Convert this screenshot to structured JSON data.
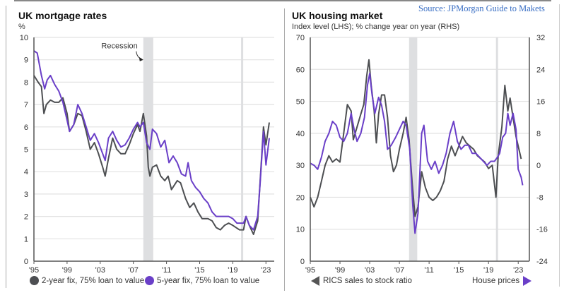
{
  "source_note": "Source: JPMorgan Guide to Makets",
  "colors": {
    "gray_series": "#4d4f52",
    "purple_series": "#6a3fc8",
    "recession": "#dedfe1",
    "grid": "#e2e2e2",
    "source_text": "#3a6fc4"
  },
  "chart_data": [
    {
      "type": "line",
      "title": "UK mortgage rates",
      "ylabel": "%",
      "xlabel": "",
      "ylim": [
        0,
        10
      ],
      "xlim": [
        1995,
        2024
      ],
      "yticks": [
        0,
        1,
        2,
        3,
        4,
        5,
        6,
        7,
        8,
        9,
        10
      ],
      "xticks": [
        {
          "x": 1995,
          "label": "'95"
        },
        {
          "x": 1999,
          "label": "'99"
        },
        {
          "x": 2003,
          "label": "'03"
        },
        {
          "x": 2007,
          "label": "'07"
        },
        {
          "x": 2011,
          "label": "'11"
        },
        {
          "x": 2015,
          "label": "'15"
        },
        {
          "x": 2019,
          "label": "'19"
        },
        {
          "x": 2023,
          "label": "'23"
        }
      ],
      "grid": true,
      "legend": "bottom",
      "annotations": [
        {
          "text": "Recession",
          "target_x": 2008.2,
          "target_y": 9.0
        }
      ],
      "shaded_periods": [
        [
          2008.2,
          2009.4
        ],
        [
          2020.0,
          2020.25
        ]
      ],
      "series": [
        {
          "name": "2-year fix, 75% loan to value",
          "color": "#4d4f52",
          "x": [
            1995,
            1995.5,
            1995.9,
            1996.2,
            1996.5,
            1997,
            1997.5,
            1998,
            1998.5,
            1999,
            1999.3,
            1999.8,
            2000.3,
            2000.8,
            2001.3,
            2001.8,
            2002.3,
            2002.8,
            2003.3,
            2003.6,
            2004,
            2004.5,
            2005,
            2005.5,
            2006,
            2006.5,
            2007,
            2007.5,
            2007.8,
            2008.2,
            2008.6,
            2008.8,
            2009,
            2009.3,
            2009.8,
            2010.3,
            2010.8,
            2011.2,
            2011.6,
            2012.3,
            2012.7,
            2013.3,
            2013.8,
            2014.3,
            2014.8,
            2015.3,
            2016,
            2016.5,
            2017,
            2017.5,
            2018,
            2018.5,
            2019,
            2019.8,
            2020.3,
            2020.6,
            2021,
            2021.5,
            2022,
            2022.7,
            2023,
            2023.4
          ],
          "values": [
            8.3,
            8.0,
            7.8,
            6.6,
            7.0,
            7.2,
            7.1,
            7.1,
            7.3,
            6.6,
            5.8,
            6.1,
            6.6,
            6.5,
            5.8,
            5.0,
            5.3,
            4.8,
            4.2,
            3.8,
            4.6,
            5.5,
            5.0,
            4.8,
            4.8,
            5.2,
            5.7,
            6.1,
            5.8,
            6.6,
            5.6,
            4.2,
            3.8,
            4.2,
            4.3,
            3.8,
            3.6,
            3.8,
            3.2,
            3.6,
            3.5,
            2.8,
            2.4,
            2.6,
            2.2,
            1.9,
            1.9,
            1.8,
            1.5,
            1.4,
            1.6,
            1.7,
            1.6,
            1.4,
            1.4,
            2.0,
            1.6,
            1.2,
            1.8,
            6.0,
            5.2,
            6.2
          ]
        },
        {
          "name": "5-year fix, 75% loan to value",
          "color": "#6a3fc8",
          "x": [
            1995,
            1995.4,
            1995.9,
            1996.3,
            1996.6,
            1997,
            1997.5,
            1998,
            1998.5,
            1999,
            1999.3,
            1999.8,
            2000.3,
            2000.8,
            2001.3,
            2001.8,
            2002.3,
            2002.8,
            2003.3,
            2003.6,
            2004,
            2004.5,
            2005,
            2005.5,
            2006,
            2006.5,
            2007,
            2007.5,
            2007.8,
            2008.2,
            2008.6,
            2009,
            2009.3,
            2009.8,
            2010.3,
            2010.8,
            2011.3,
            2011.8,
            2012.3,
            2012.8,
            2013.3,
            2013.6,
            2014,
            2014.5,
            2015,
            2015.5,
            2016,
            2016.5,
            2017,
            2017.5,
            2018,
            2018.5,
            2019,
            2019.5,
            2020.3,
            2020.6,
            2021,
            2021.5,
            2022,
            2022.3,
            2022.7,
            2023,
            2023.4
          ],
          "values": [
            9.4,
            9.3,
            8.3,
            7.7,
            8.1,
            8.3,
            7.9,
            7.6,
            7.1,
            6.3,
            5.8,
            6.1,
            7.0,
            6.6,
            6.0,
            5.4,
            5.7,
            5.3,
            4.8,
            4.5,
            5.5,
            5.8,
            5.4,
            5.1,
            5.2,
            5.5,
            5.9,
            6.2,
            6.0,
            6.2,
            5.3,
            5.0,
            5.9,
            5.7,
            5.1,
            5.4,
            4.4,
            4.7,
            4.4,
            3.9,
            3.8,
            4.4,
            3.6,
            3.3,
            3.1,
            2.8,
            2.6,
            2.2,
            2.0,
            2.0,
            2.0,
            2.0,
            1.9,
            1.7,
            1.7,
            2.0,
            1.6,
            1.4,
            2.0,
            3.5,
            5.8,
            4.3,
            5.5
          ]
        }
      ]
    },
    {
      "type": "line",
      "title": "UK housing market",
      "subtitle": "Index level (LHS); % change year on year (RHS)",
      "xlabel": "",
      "ylim": [
        0,
        70
      ],
      "y2lim": [
        -24,
        32
      ],
      "xlim": [
        1995,
        2024.5
      ],
      "yticks": [
        0,
        10,
        20,
        30,
        40,
        50,
        60,
        70
      ],
      "y2ticks": [
        -24,
        -16,
        -8,
        0,
        8,
        16,
        24,
        32
      ],
      "xticks": [
        {
          "x": 1995,
          "label": "'95"
        },
        {
          "x": 1999,
          "label": "'99"
        },
        {
          "x": 2003,
          "label": "'03"
        },
        {
          "x": 2007,
          "label": "'07"
        },
        {
          "x": 2011,
          "label": "'11"
        },
        {
          "x": 2015,
          "label": "'15"
        },
        {
          "x": 2019,
          "label": "'19"
        },
        {
          "x": 2023,
          "label": "'23"
        }
      ],
      "grid": true,
      "legend": "bottom",
      "shaded_periods": [
        [
          2008.3,
          2009.4
        ],
        [
          2020.0,
          2020.25
        ]
      ],
      "series": [
        {
          "name": "RICS sales to stock ratio",
          "axis": "left",
          "color": "#4d4f52",
          "x": [
            1995,
            1995.5,
            1996,
            1996.5,
            1997,
            1997.5,
            1998,
            1998.5,
            1999,
            1999.5,
            2000,
            2000.5,
            2000.8,
            2001.3,
            2001.8,
            2002.2,
            2002.6,
            2002.9,
            2003.2,
            2003.6,
            2003.9,
            2004.2,
            2004.6,
            2005,
            2005.4,
            2005.8,
            2006.2,
            2006.6,
            2007,
            2007.5,
            2007.9,
            2008.3,
            2008.7,
            2009.1,
            2009.5,
            2010,
            2010.5,
            2011,
            2011.5,
            2012,
            2012.5,
            2013,
            2013.5,
            2014,
            2014.5,
            2015,
            2015.5,
            2016,
            2016.5,
            2017,
            2017.5,
            2018,
            2018.5,
            2019,
            2019.5,
            2020,
            2020.3,
            2020.8,
            2021.2,
            2021.6,
            2021.9,
            2022.3,
            2022.7,
            2023,
            2023.4
          ],
          "values": [
            20,
            17,
            20,
            25,
            30,
            33,
            31,
            32,
            31,
            40,
            49,
            47,
            38,
            42,
            46,
            49,
            58,
            63,
            55,
            47,
            37,
            46,
            52,
            52,
            45,
            33,
            28,
            30,
            35,
            40,
            45,
            38,
            25,
            14,
            17,
            28,
            23,
            20,
            19,
            20,
            22,
            25,
            32,
            36,
            33,
            36,
            39,
            37,
            36,
            35,
            33,
            32,
            31,
            29,
            30,
            20,
            33,
            42,
            55,
            47,
            51,
            45,
            39,
            36,
            32
          ]
        },
        {
          "name": "House prices",
          "axis": "right",
          "color": "#6a3fc8",
          "x": [
            1995,
            1995.5,
            1996,
            1996.5,
            1997,
            1997.5,
            1998,
            1998.5,
            1999,
            1999.5,
            2000,
            2000.5,
            2000.9,
            2001.3,
            2001.8,
            2002.3,
            2002.7,
            2003,
            2003.3,
            2003.7,
            2004.2,
            2004.6,
            2005,
            2005.4,
            2005.9,
            2006.5,
            2007,
            2007.5,
            2007.9,
            2008.4,
            2008.8,
            2009.1,
            2009.5,
            2010,
            2010.3,
            2010.8,
            2011.3,
            2011.8,
            2012.3,
            2012.8,
            2013.3,
            2013.8,
            2014.3,
            2014.8,
            2015.3,
            2015.8,
            2016.3,
            2016.8,
            2017.3,
            2017.8,
            2018.3,
            2018.8,
            2019.3,
            2019.8,
            2020.2,
            2020.5,
            2020.9,
            2021.3,
            2021.6,
            2021.9,
            2022.3,
            2022.7,
            2023,
            2023.4,
            2023.6
          ],
          "values": [
            0.5,
            0,
            -1,
            2,
            6,
            8,
            11,
            10,
            7,
            6,
            8,
            13,
            9,
            6,
            8,
            12,
            20,
            23,
            18,
            13,
            17,
            15,
            11,
            4,
            5,
            7,
            9,
            11,
            10,
            4,
            -10,
            -17,
            -12,
            8,
            10,
            1,
            -1,
            1,
            -2,
            0,
            3,
            8,
            11,
            6,
            4,
            5,
            5,
            3,
            3,
            2,
            1,
            0,
            1,
            1,
            2,
            3,
            7,
            8,
            13,
            10,
            13,
            9,
            -1,
            -3,
            -5
          ]
        }
      ]
    }
  ]
}
